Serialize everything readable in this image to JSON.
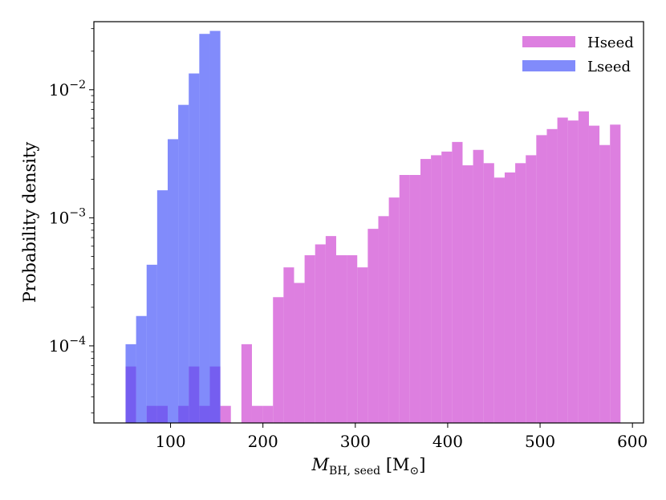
{
  "chart_data": {
    "type": "bar",
    "title": "",
    "xlabel": {
      "main": "M",
      "sub": "BH, seed",
      "unit_open": " [M",
      "unit_sym": "⊙",
      "unit_close": "]"
    },
    "ylabel": "Probability density",
    "xlim": [
      17,
      612
    ],
    "ylim": [
      2.5e-05,
      0.034
    ],
    "yscale": "log",
    "xticks": [
      100,
      200,
      300,
      400,
      500,
      600
    ],
    "yticks": [
      {
        "value": 0.0001,
        "base": "10",
        "exp": "−4"
      },
      {
        "value": 0.001,
        "base": "10",
        "exp": "−3"
      },
      {
        "value": 0.01,
        "base": "10",
        "exp": "−2"
      }
    ],
    "legend": {
      "position": "top-right"
    },
    "series": [
      {
        "name": "Hseed",
        "color": "#d55fd8",
        "opacity": 0.8,
        "bins": [
          [
            51.3,
            62.7,
            6.9e-05
          ],
          [
            62.7,
            74.1,
            2.5e-05
          ],
          [
            74.1,
            85.5,
            3.4e-05
          ],
          [
            85.5,
            96.9,
            3.4e-05
          ],
          [
            96.9,
            108.3,
            2.5e-05
          ],
          [
            108.3,
            119.7,
            3.4e-05
          ],
          [
            119.7,
            131.1,
            6.9e-05
          ],
          [
            131.1,
            142.5,
            3.4e-05
          ],
          [
            142.5,
            153.9,
            6.9e-05
          ],
          [
            153.9,
            165.3,
            3.4e-05
          ],
          [
            165.3,
            176.7,
            2.5e-05
          ],
          [
            176.7,
            188.1,
            0.000103
          ],
          [
            188.1,
            199.5,
            3.4e-05
          ],
          [
            199.5,
            210.9,
            3.4e-05
          ],
          [
            210.9,
            222.3,
            0.00024
          ],
          [
            222.3,
            233.7,
            0.00041
          ],
          [
            233.7,
            245.1,
            0.00031
          ],
          [
            245.1,
            256.5,
            0.00051
          ],
          [
            256.5,
            267.9,
            0.00062
          ],
          [
            267.9,
            279.3,
            0.00072
          ],
          [
            279.3,
            290.7,
            0.00051
          ],
          [
            290.7,
            302.1,
            0.00051
          ],
          [
            302.1,
            313.5,
            0.00041
          ],
          [
            313.5,
            324.9,
            0.00082
          ],
          [
            324.9,
            336.3,
            0.00103
          ],
          [
            336.3,
            347.7,
            0.00144
          ],
          [
            347.7,
            359.1,
            0.00216
          ],
          [
            359.1,
            370.5,
            0.00216
          ],
          [
            370.5,
            381.9,
            0.00288
          ],
          [
            381.9,
            393.3,
            0.00308
          ],
          [
            393.3,
            404.7,
            0.00329
          ],
          [
            404.7,
            416.1,
            0.00391
          ],
          [
            416.1,
            427.5,
            0.00257
          ],
          [
            427.5,
            438.9,
            0.00339
          ],
          [
            438.9,
            450.3,
            0.00267
          ],
          [
            450.3,
            461.7,
            0.00206
          ],
          [
            461.7,
            473.1,
            0.00226
          ],
          [
            473.1,
            484.5,
            0.00267
          ],
          [
            484.5,
            495.9,
            0.00308
          ],
          [
            495.9,
            507.3,
            0.00442
          ],
          [
            507.3,
            518.7,
            0.00493
          ],
          [
            518.7,
            530.1,
            0.00606
          ],
          [
            530.1,
            541.5,
            0.00575
          ],
          [
            541.5,
            552.9,
            0.00678
          ],
          [
            552.9,
            564.3,
            0.00524
          ],
          [
            564.3,
            575.7,
            0.0037
          ],
          [
            575.7,
            587.1,
            0.00534
          ]
        ]
      },
      {
        "name": "Lseed",
        "color": "#3d4df9",
        "opacity": 0.65,
        "bins": [
          [
            51.3,
            62.7,
            0.000103
          ],
          [
            62.7,
            74.1,
            0.000171
          ],
          [
            74.1,
            85.5,
            0.00043
          ],
          [
            85.5,
            96.9,
            0.00164
          ],
          [
            96.9,
            108.3,
            0.00411
          ],
          [
            108.3,
            119.7,
            0.00762
          ],
          [
            119.7,
            131.1,
            0.0134
          ],
          [
            131.1,
            142.5,
            0.0273
          ],
          [
            142.5,
            153.9,
            0.0288
          ]
        ]
      }
    ]
  }
}
